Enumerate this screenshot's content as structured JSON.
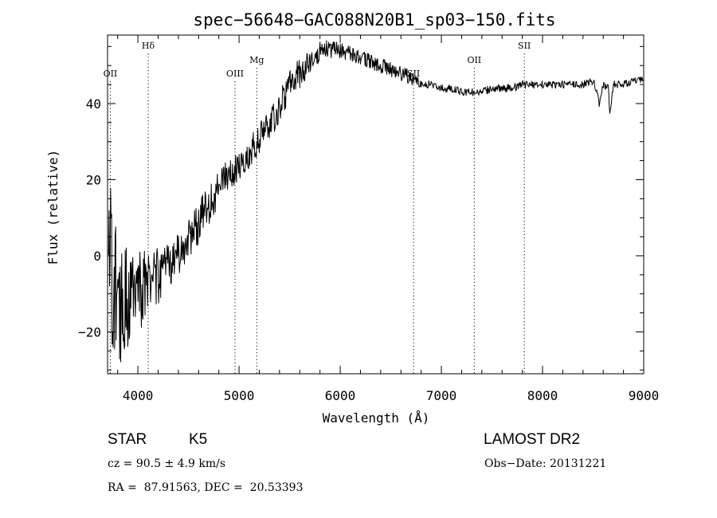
{
  "chart_data": {
    "type": "line",
    "title": "spec−56648−GAC088N20B1_sp03−150.fits",
    "xlabel": "Wavelength (Å)",
    "ylabel": "Flux (relative)",
    "xlim": [
      3700,
      9000
    ],
    "ylim": [
      -31,
      58
    ],
    "x_ticks": [
      4000,
      5000,
      6000,
      7000,
      8000,
      9000
    ],
    "x_tick_labels": [
      "4000",
      "5000",
      "6000",
      "7000",
      "8000",
      "9000"
    ],
    "y_ticks": [
      -20,
      0,
      20,
      40
    ],
    "y_tick_labels": [
      "−20",
      "0",
      "20",
      "40"
    ],
    "grid": false,
    "series": [
      {
        "color": "#000000",
        "x": [
          3710,
          3750,
          3800,
          3850,
          3900,
          3950,
          4000,
          4050,
          4100,
          4150,
          4200,
          4300,
          4400,
          4500,
          4600,
          4700,
          4800,
          4900,
          5000,
          5100,
          5200,
          5300,
          5400,
          5500,
          5600,
          5700,
          5800,
          5900,
          6000,
          6100,
          6200,
          6300,
          6400,
          6500,
          6600,
          6700,
          6800,
          6900,
          7000,
          7100,
          7200,
          7300,
          7400,
          7500,
          7600,
          7700,
          7800,
          7900,
          8000,
          8100,
          8200,
          8300,
          8400,
          8500,
          8540,
          8560,
          8600,
          8650,
          8665,
          8700,
          8800,
          8900,
          9000
        ],
        "y": [
          5,
          -5,
          -10,
          -12,
          -12,
          -10,
          -9,
          -8,
          -6,
          -6,
          -5,
          -3,
          1,
          5,
          9,
          13,
          18,
          22,
          23,
          27,
          31,
          34,
          39,
          45,
          48,
          51,
          54,
          54,
          54,
          53,
          52,
          51,
          50,
          49,
          48,
          47,
          45,
          45,
          44,
          44,
          43,
          43,
          43,
          44,
          44,
          44,
          45,
          45,
          45,
          45,
          45,
          45,
          45,
          46,
          43,
          40,
          45,
          44,
          37,
          45,
          45,
          46,
          46
        ],
        "noise": [
          20,
          20,
          18,
          16,
          14,
          13,
          12,
          11,
          10,
          9,
          8,
          7,
          6,
          6,
          6,
          5,
          5,
          4,
          4,
          4,
          4,
          4,
          4,
          4,
          4,
          3,
          3,
          3,
          2,
          2,
          2,
          2,
          2,
          2,
          2,
          2,
          1,
          1,
          1,
          1,
          1,
          1,
          1,
          1,
          1,
          1,
          1,
          1,
          1,
          1,
          1,
          1,
          1,
          1,
          1,
          1,
          1,
          1,
          1,
          1,
          1,
          1,
          1
        ]
      }
    ],
    "line_markers": [
      {
        "label": "OII",
        "x": 3727,
        "level": "low"
      },
      {
        "label": "Hδ",
        "x": 4102,
        "level": "high"
      },
      {
        "label": "OIII",
        "x": 4960,
        "level": "low"
      },
      {
        "label": "Mg",
        "x": 5175,
        "level": "mid"
      },
      {
        "label": "SII",
        "x": 6725,
        "level": "low"
      },
      {
        "label": "OII",
        "x": 7325,
        "level": "mid"
      },
      {
        "label": "SII",
        "x": 7820,
        "level": "high"
      }
    ]
  },
  "info": {
    "object_class": "STAR",
    "subclass": "K5",
    "survey": "LAMOST DR2",
    "redshift": "cz = 90.5 ± 4.9 km/s",
    "obs_date": "Obs−Date: 20131221",
    "coords": "RA =  87.91563, DEC =  20.53393"
  }
}
